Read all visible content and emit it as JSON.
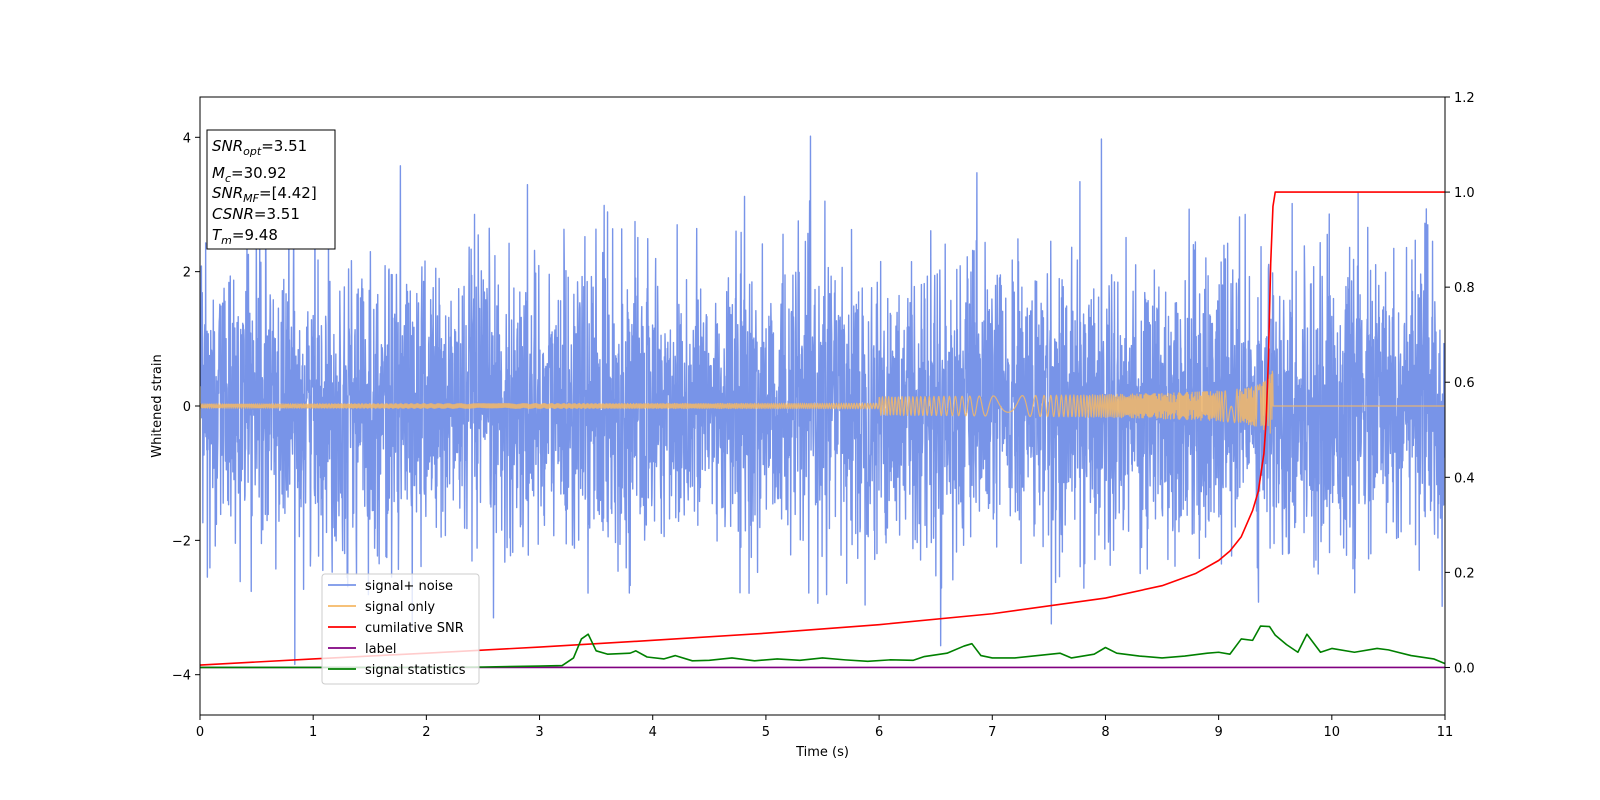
{
  "chart_data": {
    "type": "line",
    "title": "",
    "xlabel": "Time (s)",
    "ylabel": "Whitened strain",
    "xlim": [
      0,
      11
    ],
    "ylim_left": [
      -4.6,
      4.6
    ],
    "ylim_right": [
      -0.1,
      1.2
    ],
    "x_ticks": [
      "0",
      "1",
      "2",
      "3",
      "4",
      "5",
      "6",
      "7",
      "8",
      "9",
      "10",
      "11"
    ],
    "y_ticks_left": [
      "−4",
      "−2",
      "0",
      "2",
      "4"
    ],
    "y_ticks_right": [
      "0.0",
      "0.2",
      "0.4",
      "0.6",
      "0.8",
      "1.0",
      "1.2"
    ],
    "grid": false,
    "legend_position": "lower-left",
    "annotation": {
      "lines": [
        {
          "base": "SNR",
          "sub": "opt",
          "value": "=3.51"
        },
        {
          "base": "M",
          "sub": "c",
          "value": "=30.92"
        },
        {
          "base": "SNR",
          "sub": "MF",
          "value": "=[4.42]"
        },
        {
          "base": "CSNR",
          "sub": "",
          "value": "=3.51"
        },
        {
          "base": "T",
          "sub": "m",
          "value": "=9.48"
        }
      ]
    },
    "series": [
      {
        "name": "signal+ noise",
        "axis": "left",
        "color": "#7894e8",
        "kind": "noise",
        "std": 1.05,
        "x_range": [
          0,
          11
        ],
        "n_samples": 4400
      },
      {
        "name": "signal only",
        "axis": "left",
        "color": "#f4b866",
        "kind": "chirp",
        "merger_time": 9.48,
        "peak_amplitude": 0.75,
        "x_range": [
          0,
          11
        ]
      },
      {
        "name": "cumilative SNR",
        "axis": "right",
        "color": "#ff0000",
        "x": [
          0,
          1,
          2,
          3,
          4,
          5,
          6,
          7,
          8,
          8.5,
          8.8,
          9.0,
          9.1,
          9.2,
          9.3,
          9.35,
          9.4,
          9.42,
          9.44,
          9.46,
          9.48,
          9.5,
          10,
          11
        ],
        "y": [
          0.005,
          0.018,
          0.03,
          0.043,
          0.057,
          0.072,
          0.09,
          0.113,
          0.146,
          0.172,
          0.198,
          0.225,
          0.245,
          0.275,
          0.33,
          0.37,
          0.45,
          0.52,
          0.65,
          0.85,
          0.97,
          1.0,
          1.0,
          1.0
        ]
      },
      {
        "name": "label",
        "axis": "right",
        "color": "#800080",
        "x": [
          0,
          11
        ],
        "y": [
          0.0,
          0.0
        ]
      },
      {
        "name": "signal statistics",
        "axis": "right",
        "color": "#008000",
        "x": [
          0,
          1,
          2,
          2.5,
          3,
          3.2,
          3.3,
          3.37,
          3.43,
          3.5,
          3.6,
          3.8,
          3.85,
          3.95,
          4.1,
          4.2,
          4.35,
          4.5,
          4.7,
          4.9,
          5.1,
          5.3,
          5.5,
          5.7,
          5.9,
          6.1,
          6.3,
          6.4,
          6.6,
          6.75,
          6.82,
          6.9,
          7.0,
          7.2,
          7.4,
          7.6,
          7.7,
          7.9,
          8.0,
          8.1,
          8.3,
          8.5,
          8.7,
          8.9,
          9.0,
          9.1,
          9.2,
          9.3,
          9.37,
          9.45,
          9.5,
          9.6,
          9.7,
          9.78,
          9.9,
          10.0,
          10.2,
          10.4,
          10.5,
          10.7,
          10.9,
          11.0
        ],
        "y": [
          0.0,
          0.0,
          0.0,
          0.001,
          0.003,
          0.004,
          0.02,
          0.06,
          0.07,
          0.035,
          0.028,
          0.03,
          0.035,
          0.022,
          0.018,
          0.025,
          0.014,
          0.015,
          0.02,
          0.014,
          0.018,
          0.015,
          0.02,
          0.016,
          0.013,
          0.016,
          0.015,
          0.023,
          0.03,
          0.045,
          0.05,
          0.025,
          0.02,
          0.02,
          0.025,
          0.03,
          0.02,
          0.028,
          0.042,
          0.03,
          0.024,
          0.02,
          0.024,
          0.03,
          0.032,
          0.028,
          0.06,
          0.057,
          0.087,
          0.086,
          0.068,
          0.048,
          0.032,
          0.07,
          0.032,
          0.04,
          0.032,
          0.04,
          0.037,
          0.025,
          0.018,
          0.008
        ]
      }
    ]
  }
}
